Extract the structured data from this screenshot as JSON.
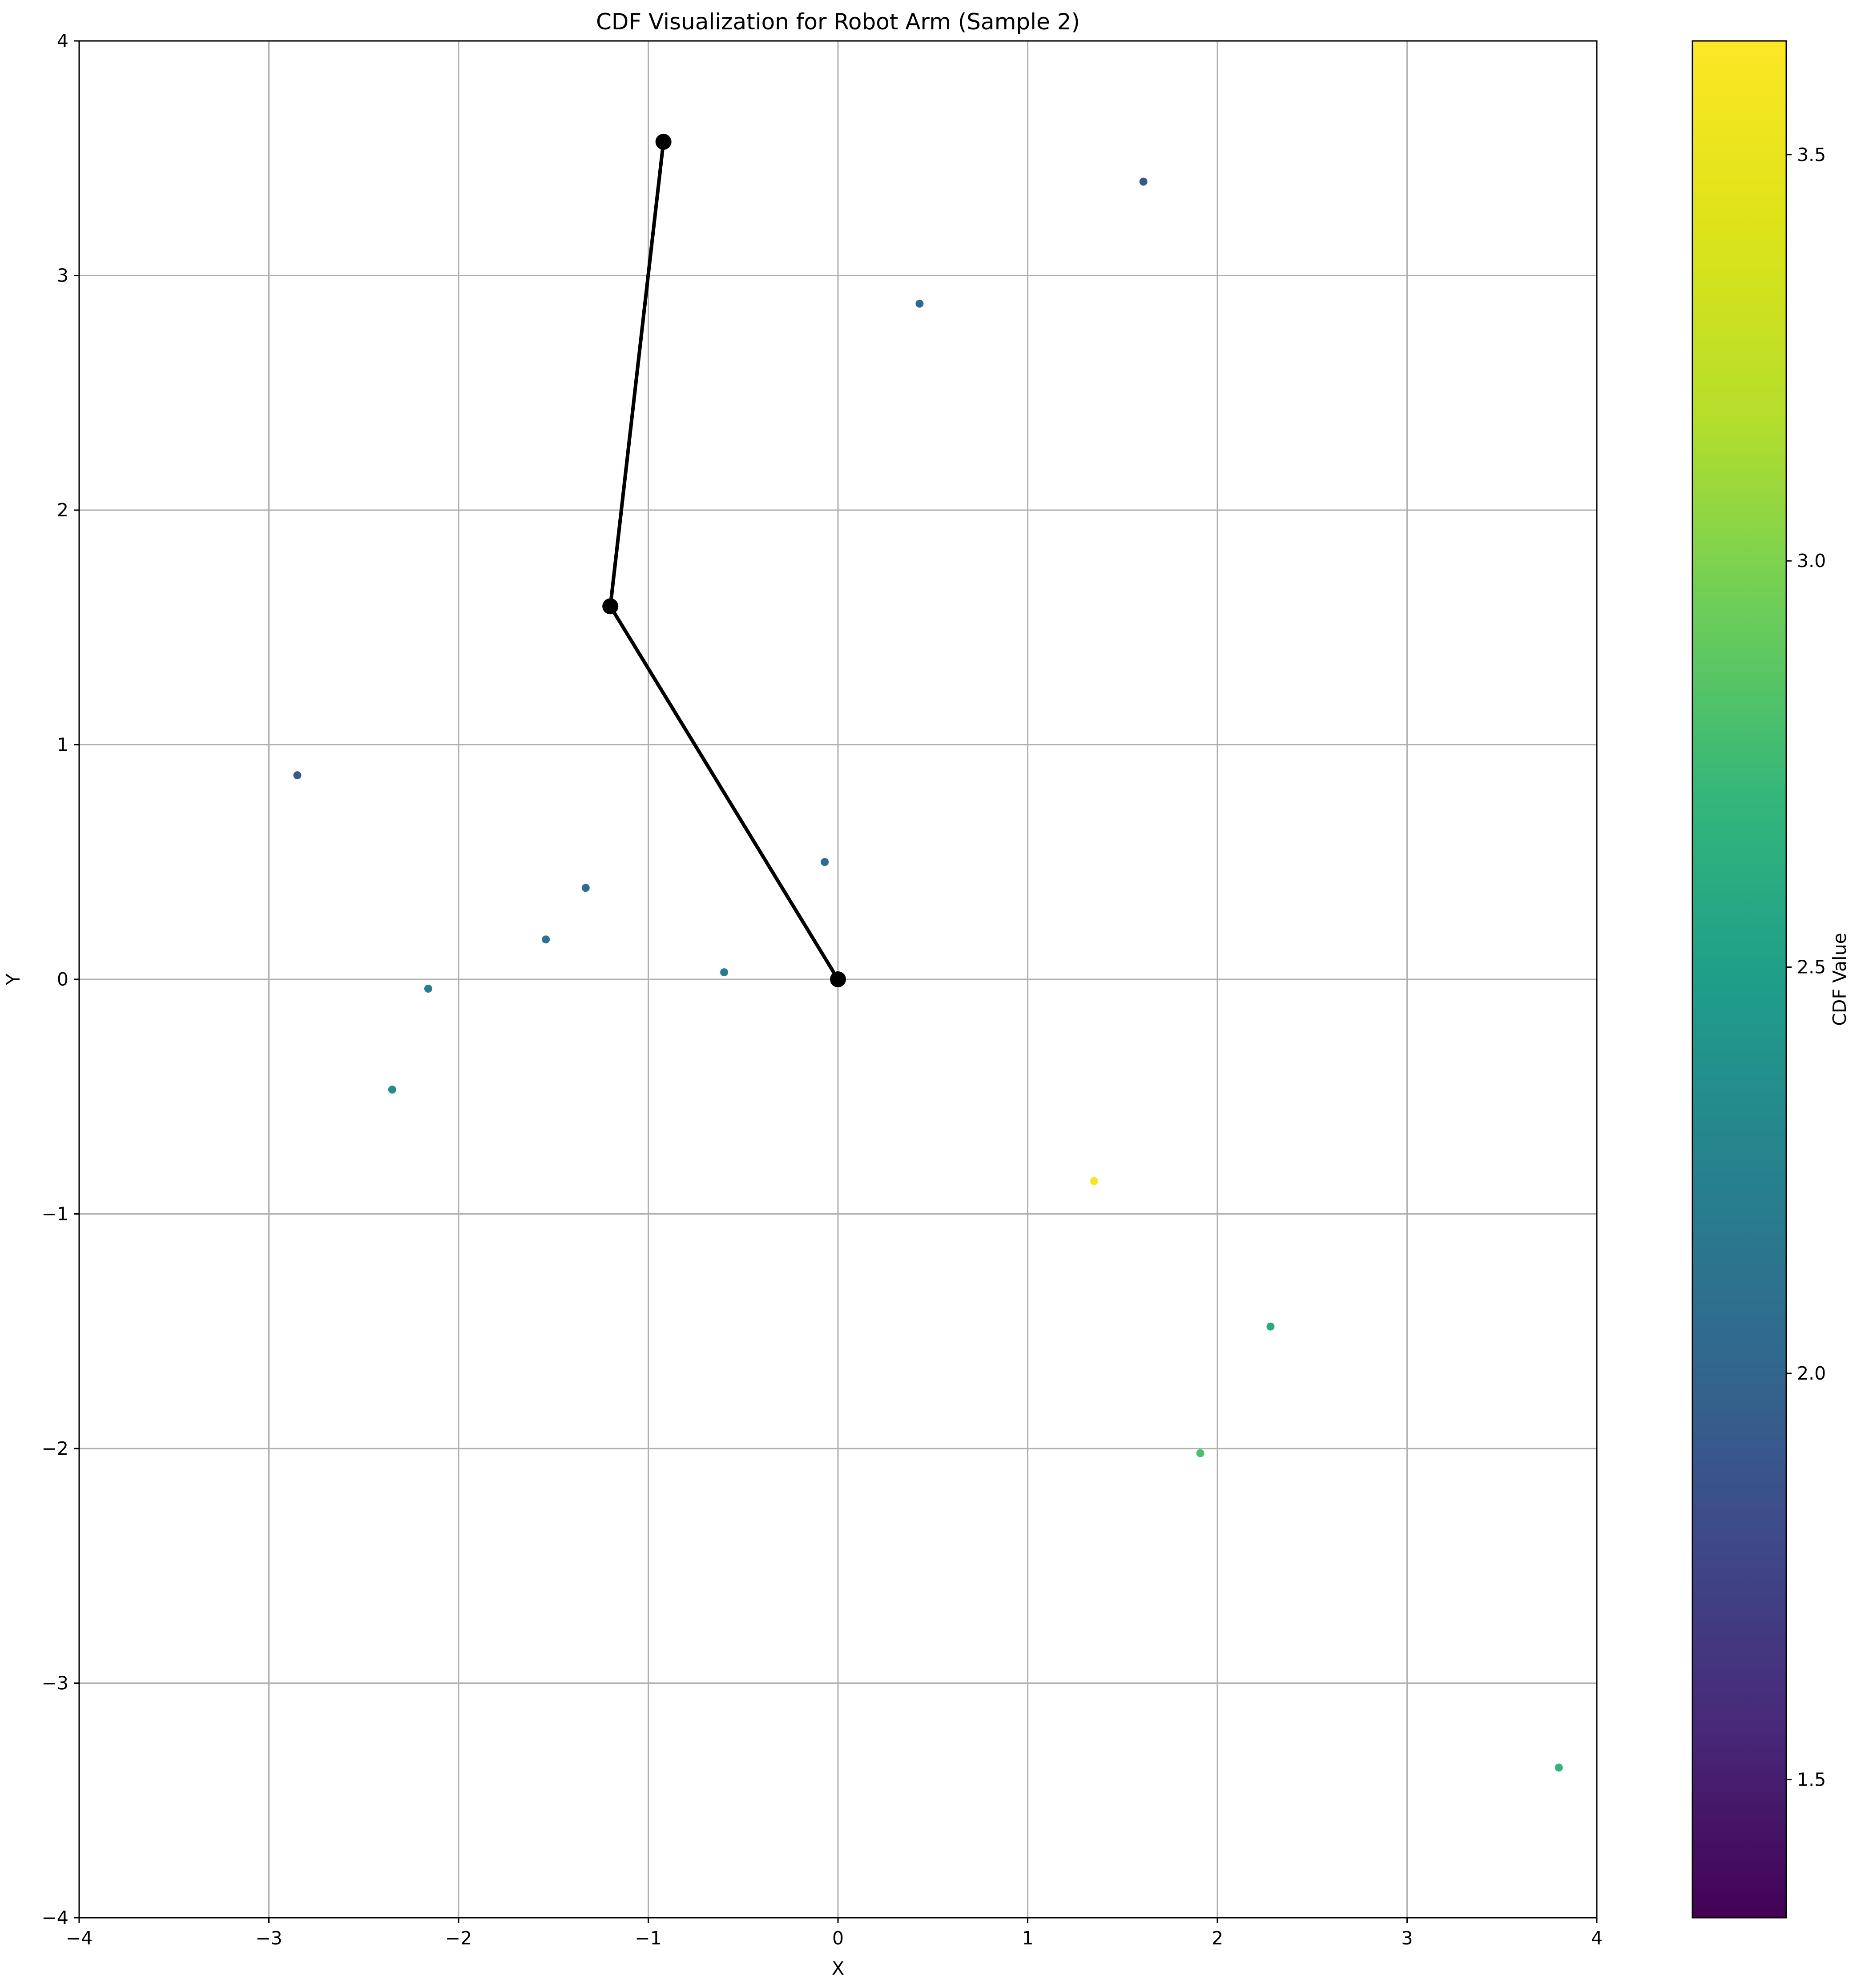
{
  "chart_data": {
    "type": "scatter",
    "title": "CDF Visualization for Robot Arm (Sample 2)",
    "xlabel": "X",
    "ylabel": "Y",
    "xlim": [
      -4,
      4
    ],
    "ylim": [
      -4,
      4
    ],
    "xticks": [
      -4,
      -3,
      -2,
      -1,
      0,
      1,
      2,
      3,
      4
    ],
    "yticks": [
      -4,
      -3,
      -2,
      -1,
      0,
      1,
      2,
      3,
      4
    ],
    "grid": true,
    "colormap": "viridis",
    "colorbar": {
      "label": "CDF Value",
      "range": [
        1.33,
        3.64
      ],
      "ticks": [
        1.5,
        2.0,
        2.5,
        3.0,
        3.5
      ]
    },
    "arm": {
      "joints": [
        {
          "x": 0.0,
          "y": 0.0
        },
        {
          "x": -1.2,
          "y": 1.59
        },
        {
          "x": -0.92,
          "y": 3.57
        }
      ],
      "color": "#000000"
    },
    "points": [
      {
        "x": 1.61,
        "y": 3.4,
        "cdf": 1.9
      },
      {
        "x": 0.43,
        "y": 2.88,
        "cdf": 2.03
      },
      {
        "x": -2.85,
        "y": 0.87,
        "cdf": 1.92
      },
      {
        "x": -0.07,
        "y": 0.5,
        "cdf": 2.04
      },
      {
        "x": -1.33,
        "y": 0.39,
        "cdf": 2.06
      },
      {
        "x": -1.54,
        "y": 0.17,
        "cdf": 2.12
      },
      {
        "x": -0.6,
        "y": 0.03,
        "cdf": 2.18
      },
      {
        "x": -2.16,
        "y": -0.04,
        "cdf": 2.22
      },
      {
        "x": -2.35,
        "y": -0.47,
        "cdf": 2.32
      },
      {
        "x": 1.35,
        "y": -0.86,
        "cdf": 3.6
      },
      {
        "x": 2.28,
        "y": -1.48,
        "cdf": 2.6
      },
      {
        "x": 1.91,
        "y": -2.02,
        "cdf": 2.8
      },
      {
        "x": 3.8,
        "y": -3.36,
        "cdf": 2.7
      }
    ]
  }
}
